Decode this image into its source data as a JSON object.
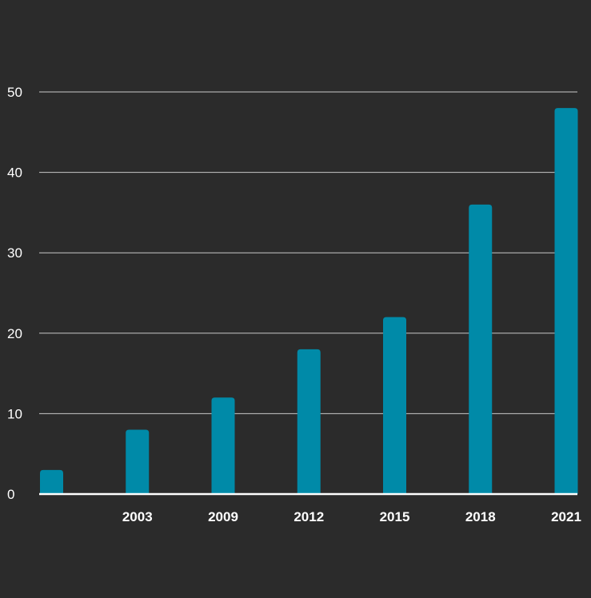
{
  "chart_data": {
    "type": "bar",
    "categories": [
      "",
      "2003",
      "2009",
      "2012",
      "2015",
      "2018",
      "2021"
    ],
    "values": [
      3,
      8,
      12,
      18,
      22,
      36,
      48
    ],
    "title": "",
    "xlabel": "",
    "ylabel": "",
    "ylim": [
      0,
      50
    ],
    "yticks": [
      0,
      10,
      20,
      30,
      40,
      50
    ],
    "grid": true,
    "bar_color": "#008aa8",
    "background_color": "#2b2b2b",
    "grid_color": "#c8c8c8",
    "axis_color": "#ffffff",
    "text_color": "#ffffff"
  }
}
